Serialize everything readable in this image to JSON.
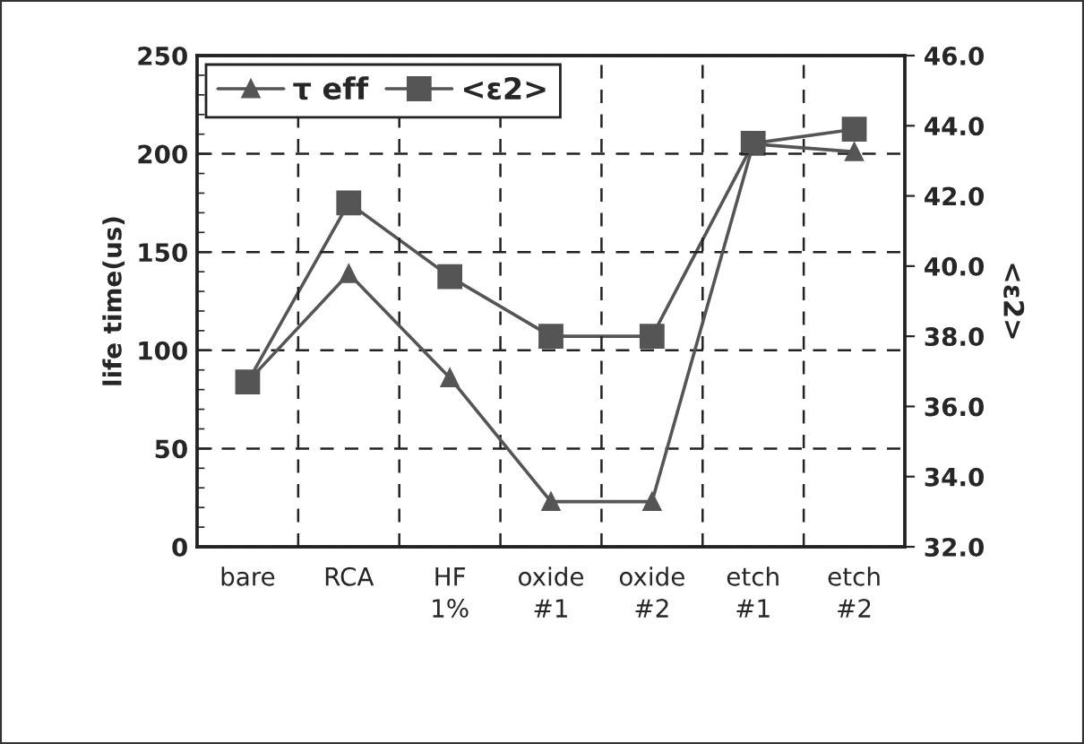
{
  "chart_data": {
    "type": "line",
    "categories": [
      "bare",
      "RCA",
      "HF\n1%",
      "oxide\n#1",
      "oxide\n#2",
      "etch\n#1",
      "etch\n#2"
    ],
    "series": [
      {
        "name": "τ eff",
        "color": "#555555",
        "marker": "triangle",
        "values": [
          84,
          139,
          86,
          23,
          23,
          205,
          201
        ]
      },
      {
        "name": "<ε2>",
        "color": "#555555",
        "marker": "square",
        "axis": "y2",
        "values": [
          36.7,
          41.8,
          39.7,
          38.0,
          38.0,
          43.5,
          43.9
        ]
      }
    ],
    "ylabel": "life time(us)",
    "y2label": "<ε2>",
    "ylim": [
      0,
      250
    ],
    "yticks": [
      0,
      50,
      100,
      150,
      200,
      250
    ],
    "y2lim": [
      32.0,
      46.0
    ],
    "y2ticks": [
      {
        "value": 32,
        "label": "32.0"
      },
      {
        "value": 34,
        "label": "34.0"
      },
      {
        "value": 36,
        "label": "36.0"
      },
      {
        "value": 38,
        "label": "38.0"
      },
      {
        "value": 40,
        "label": "40.0"
      },
      {
        "value": 42,
        "label": "42.0"
      },
      {
        "value": 44,
        "label": "44.0"
      },
      {
        "value": 46,
        "label": "46.0"
      }
    ],
    "grid": true,
    "legend": "top left",
    "line_style": "solid"
  }
}
